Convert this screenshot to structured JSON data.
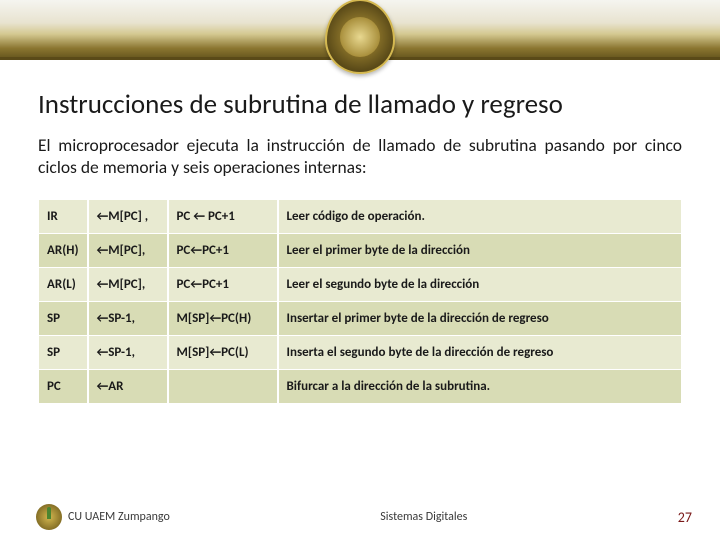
{
  "title": "Instrucciones de subrutina de llamado y regreso",
  "intro": "El microprocesador ejecuta la instrucción de llamado de subrutina pasando por cinco ciclos de memoria y seis operaciones internas:",
  "table": {
    "rows": [
      {
        "reg": "IR",
        "op1": "←M[PC] ,",
        "op2": "PC ← PC+1",
        "desc": "Leer código de operación."
      },
      {
        "reg": "AR(H)",
        "op1": "←M[PC],",
        "op2": "PC←PC+1",
        "desc": "Leer el primer byte de la dirección"
      },
      {
        "reg": "AR(L)",
        "op1": "←M[PC],",
        "op2": "PC←PC+1",
        "desc": "Leer el segundo byte de la dirección"
      },
      {
        "reg": "SP",
        "op1": "←SP-1,",
        "op2": "M[SP]←PC(H)",
        "desc": "Insertar el primer byte de la dirección de regreso"
      },
      {
        "reg": "SP",
        "op1": "←SP-1,",
        "op2": "M[SP]←PC(L)",
        "desc": "Inserta el segundo byte de la dirección de regreso"
      },
      {
        "reg": "PC",
        "op1": "←AR",
        "op2": "",
        "desc": "Bifurcar a la dirección de la subrutina."
      }
    ]
  },
  "footer": {
    "left": "CU UAEM Zumpango",
    "center": "Sistemas Digitales",
    "page": "27"
  },
  "colors": {
    "row_odd": "#e8ead1",
    "row_even": "#d8dcb5",
    "page_num": "#7a1818"
  }
}
